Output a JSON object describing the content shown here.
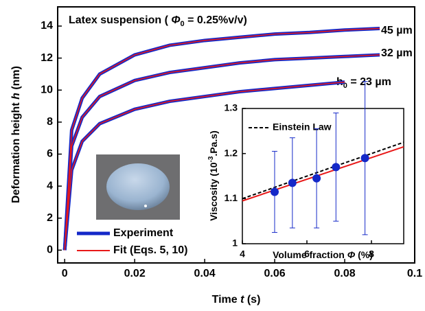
{
  "chart_data": [
    {
      "type": "line",
      "title": [
        "Latex suspension ( ",
        "Φ",
        "0",
        " = 0.25%v/v)"
      ],
      "x_label": [
        "Time ",
        "t",
        " (s)"
      ],
      "y_label": [
        "Deformation height ",
        "h",
        " (nm)"
      ],
      "x": [
        0,
        0.002,
        0.005,
        0.01,
        0.02,
        0.03,
        0.04,
        0.05,
        0.06,
        0.07,
        0.08,
        0.09
      ],
      "series": [
        {
          "name": "Experiment",
          "color": "#1428c8",
          "values": [
            [
              0,
              7.5,
              9.5,
              11.0,
              12.2,
              12.8,
              13.1,
              13.3,
              13.5,
              13.6,
              13.75,
              13.85
            ],
            [
              0,
              6.5,
              8.3,
              9.6,
              10.6,
              11.1,
              11.4,
              11.7,
              11.9,
              12.0,
              12.1,
              12.2
            ],
            [
              0,
              5.0,
              6.8,
              7.9,
              8.8,
              9.3,
              9.6,
              9.9,
              10.1,
              10.3,
              10.5,
              null
            ]
          ]
        },
        {
          "name": "Fit (Eqs. 5, 10)",
          "color": "#e81818",
          "values": [
            [
              0,
              7.5,
              9.5,
              11.0,
              12.2,
              12.8,
              13.1,
              13.3,
              13.5,
              13.6,
              13.75,
              13.85
            ],
            [
              0,
              6.5,
              8.3,
              9.6,
              10.6,
              11.1,
              11.4,
              11.7,
              11.9,
              12.0,
              12.1,
              12.2
            ],
            [
              0,
              5.0,
              6.8,
              7.9,
              8.8,
              9.3,
              9.6,
              9.9,
              10.1,
              10.3,
              10.5,
              null
            ]
          ]
        }
      ],
      "curve_labels": [
        [
          "45 µm"
        ],
        [
          "32 µm"
        ],
        [
          "h",
          "0",
          " = 23 µm"
        ]
      ],
      "xlim": [
        -0.002,
        0.1
      ],
      "ylim": [
        -0.8,
        15.2
      ],
      "xticks": [
        0,
        0.02,
        0.04,
        0.06,
        0.08,
        0.1
      ],
      "yticks": [
        0,
        2,
        4,
        6,
        8,
        10,
        12,
        14
      ]
    },
    {
      "type": "scatter",
      "x_label": [
        "Volume fraction ",
        "Φ",
        " (%)"
      ],
      "y_label": [
        "Viscosity (10",
        "-3",
        ".Pa.s)"
      ],
      "x": [
        5.0,
        5.55,
        6.3,
        6.9,
        7.8
      ],
      "values": [
        1.115,
        1.135,
        1.145,
        1.17,
        1.19
      ],
      "errors": [
        0.09,
        0.1,
        0.11,
        0.12,
        0.17
      ],
      "color": "#1428c8",
      "series": [
        {
          "name": "Einstein Law",
          "color": "#000000",
          "dashed": true,
          "x": [
            4,
            9
          ],
          "values": [
            1.1,
            1.225
          ]
        },
        {
          "color": "#e81818",
          "dashed": false,
          "x": [
            4,
            9
          ],
          "values": [
            1.095,
            1.215
          ]
        }
      ],
      "xlim": [
        4,
        9
      ],
      "ylim": [
        1,
        1.3
      ],
      "xticks": [
        4,
        6,
        8
      ],
      "yticks": [
        1,
        1.1,
        1.2,
        1.3
      ]
    }
  ]
}
